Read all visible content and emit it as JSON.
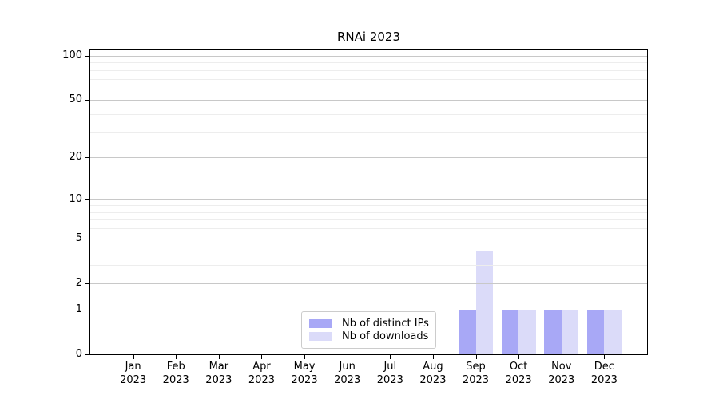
{
  "figure": {
    "background": "#ffffff"
  },
  "chart_data": {
    "type": "bar",
    "title": "RNAi 2023",
    "categories": [
      "Jan 2023",
      "Feb 2023",
      "Mar 2023",
      "Apr 2023",
      "May 2023",
      "Jun 2023",
      "Jul 2023",
      "Aug 2023",
      "Sep 2023",
      "Oct 2023",
      "Nov 2023",
      "Dec 2023"
    ],
    "x_tick_months": [
      "Jan",
      "Feb",
      "Mar",
      "Apr",
      "May",
      "Jun",
      "Jul",
      "Aug",
      "Sep",
      "Oct",
      "Nov",
      "Dec"
    ],
    "x_tick_year": "2023",
    "series": [
      {
        "name": "Nb of distinct IPs",
        "color": "#a8a8f6",
        "values": [
          0,
          0,
          0,
          0,
          0,
          0,
          0,
          0,
          1,
          1,
          1,
          1
        ]
      },
      {
        "name": "Nb of downloads",
        "color": "#dbdbf9",
        "values": [
          0,
          0,
          0,
          0,
          0,
          0,
          0,
          0,
          4,
          1,
          1,
          1
        ]
      }
    ],
    "xlabel": "",
    "ylabel": "",
    "yscale": "log1p",
    "ylim": [
      0,
      110
    ],
    "yticks": [
      0,
      1,
      2,
      5,
      10,
      20,
      50,
      100
    ],
    "y_minor_gridlines": [
      3,
      4,
      6,
      7,
      8,
      9,
      30,
      40,
      60,
      70,
      80,
      90
    ],
    "grid": "horizontal-major-and-minor",
    "legend_position": "lower center"
  },
  "style": {
    "grid_major_color": "#c8c8c8",
    "grid_minor_color": "#ededed",
    "axis_color": "#000000",
    "legend_border_color": "#cccccc",
    "text_color": "#000000"
  }
}
